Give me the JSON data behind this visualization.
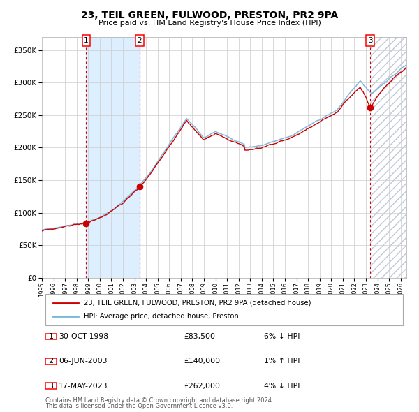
{
  "title": "23, TEIL GREEN, FULWOOD, PRESTON, PR2 9PA",
  "subtitle": "Price paid vs. HM Land Registry's House Price Index (HPI)",
  "legend_line1": "23, TEIL GREEN, FULWOOD, PRESTON, PR2 9PA (detached house)",
  "legend_line2": "HPI: Average price, detached house, Preston",
  "footer1": "Contains HM Land Registry data © Crown copyright and database right 2024.",
  "footer2": "This data is licensed under the Open Government Licence v3.0.",
  "sales": [
    {
      "num": 1,
      "date": "30-OCT-1998",
      "price": 83500,
      "pct": "6% ↓ HPI",
      "year": 1998.83
    },
    {
      "num": 2,
      "date": "06-JUN-2003",
      "price": 140000,
      "pct": "1% ↑ HPI",
      "year": 2003.43
    },
    {
      "num": 3,
      "date": "17-MAY-2023",
      "price": 262000,
      "pct": "4% ↓ HPI",
      "year": 2023.37
    }
  ],
  "hpi_color": "#7ab6d8",
  "price_color": "#cc0000",
  "dot_color": "#cc0000",
  "vline_color": "#cc0000",
  "shade_color": "#ddeeff",
  "grid_color": "#cccccc",
  "bg_color": "#ffffff",
  "ylim": [
    0,
    370000
  ],
  "yticks": [
    0,
    50000,
    100000,
    150000,
    200000,
    250000,
    300000,
    350000
  ],
  "xlim_start": 1995.0,
  "xlim_end": 2026.5
}
